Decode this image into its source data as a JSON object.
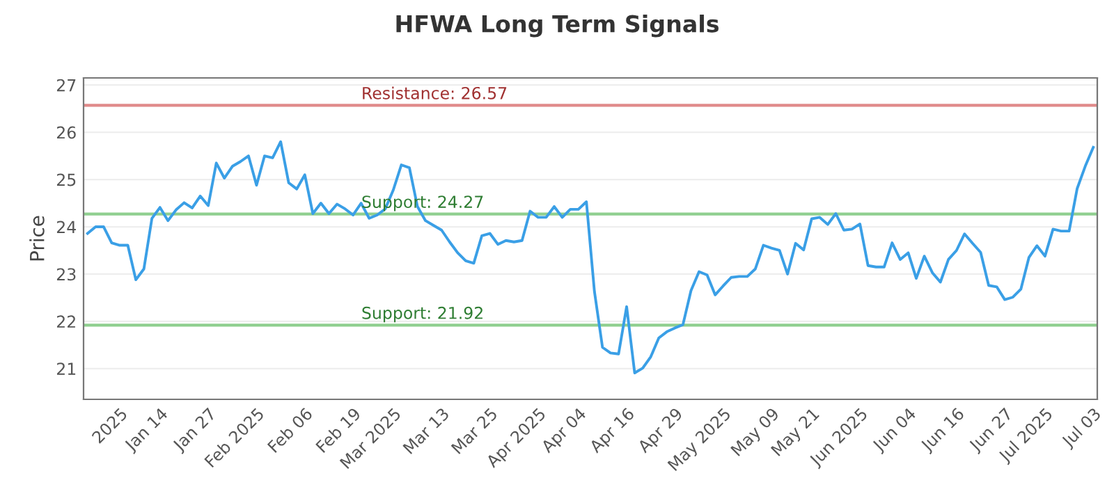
{
  "chart_data": {
    "type": "line",
    "title": "HFWA Long Term Signals",
    "ylabel": "Price",
    "categories": [
      null,
      null,
      null,
      null,
      "2025",
      null,
      null,
      null,
      null,
      "Jan 14",
      null,
      null,
      null,
      null,
      null,
      "Jan 27",
      null,
      null,
      null,
      null,
      null,
      "Feb 2025",
      null,
      null,
      null,
      null,
      null,
      "Feb 06",
      null,
      null,
      null,
      null,
      null,
      "Feb 19",
      null,
      null,
      null,
      null,
      "Mar 2025",
      null,
      null,
      null,
      null,
      null,
      "Mar 13",
      null,
      null,
      null,
      null,
      null,
      "Mar 25",
      null,
      null,
      null,
      null,
      null,
      "Apr 2025",
      null,
      null,
      null,
      null,
      "Apr 04",
      null,
      null,
      null,
      null,
      null,
      "Apr 16",
      null,
      null,
      null,
      null,
      null,
      "Apr 29",
      null,
      null,
      null,
      null,
      null,
      "May 2025",
      null,
      null,
      null,
      null,
      null,
      "May 09",
      null,
      null,
      null,
      null,
      "May 21",
      null,
      null,
      null,
      null,
      null,
      "Jun 2025",
      null,
      null,
      null,
      null,
      null,
      "Jun 04",
      null,
      null,
      null,
      null,
      null,
      "Jun 16",
      null,
      null,
      null,
      null,
      null,
      "Jun 27",
      null,
      null,
      null,
      null,
      "Jul 2025",
      null,
      null,
      null,
      null,
      null,
      "Jul 03"
    ],
    "series": [
      {
        "color": "#3a9fe6",
        "values": [
          23.86,
          24.0,
          24.0,
          23.66,
          23.61,
          23.61,
          22.88,
          23.11,
          24.18,
          24.41,
          24.13,
          24.36,
          24.51,
          24.4,
          24.65,
          24.45,
          25.35,
          25.03,
          25.28,
          25.38,
          25.5,
          24.88,
          25.5,
          25.46,
          25.8,
          24.93,
          24.8,
          25.1,
          24.28,
          24.5,
          24.28,
          24.48,
          24.38,
          24.25,
          24.5,
          24.18,
          24.25,
          24.38,
          24.78,
          25.31,
          25.25,
          24.43,
          24.13,
          24.03,
          23.93,
          23.68,
          23.45,
          23.28,
          23.23,
          23.81,
          23.86,
          23.63,
          23.71,
          23.68,
          23.71,
          24.33,
          24.2,
          24.2,
          24.43,
          24.2,
          24.37,
          24.37,
          24.53,
          22.63,
          21.45,
          21.33,
          21.31,
          22.31,
          20.91,
          21.01,
          21.25,
          21.65,
          21.78,
          21.86,
          21.93,
          22.65,
          23.05,
          22.98,
          22.56,
          22.75,
          22.93,
          22.95,
          22.95,
          23.11,
          23.61,
          23.55,
          23.5,
          23.0,
          23.65,
          23.51,
          24.17,
          24.2,
          24.05,
          24.28,
          23.93,
          23.95,
          24.06,
          23.18,
          23.15,
          23.15,
          23.66,
          23.31,
          23.45,
          22.91,
          23.38,
          23.03,
          22.83,
          23.31,
          23.5,
          23.85,
          23.65,
          23.46,
          22.76,
          22.73,
          22.46,
          22.51,
          22.68,
          23.35,
          23.6,
          23.38,
          23.95,
          23.91,
          23.91,
          24.81,
          25.28,
          25.68
        ]
      }
    ],
    "ylim": [
      20.35,
      27.15
    ],
    "yticks": [
      21,
      22,
      23,
      24,
      25,
      26,
      27
    ],
    "grid": "y",
    "marker": "none",
    "line_style": "solid",
    "ref_lines": [
      {
        "axis": "y",
        "value": 26.57,
        "label": "Resistance: 26.57",
        "color": "#e08a8a"
      },
      {
        "axis": "y",
        "value": 24.27,
        "label": "Support: 24.27",
        "color": "#8fcf8f"
      },
      {
        "axis": "y",
        "value": 21.92,
        "label": "Support: 21.92",
        "color": "#8fcf8f"
      }
    ]
  }
}
